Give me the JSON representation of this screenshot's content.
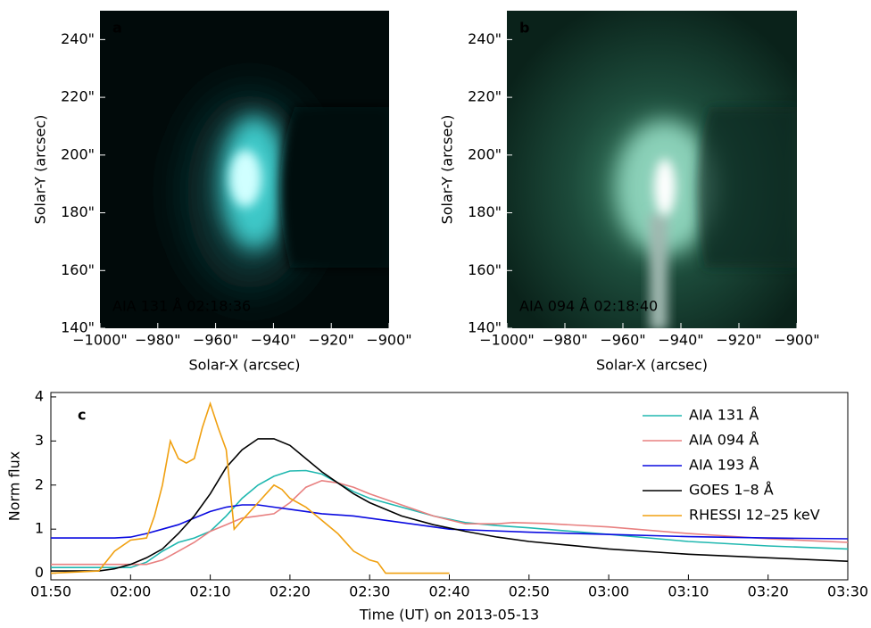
{
  "chart_data": [
    {
      "type": "image",
      "panel": "a",
      "annotation": "AIA 131 Å 02:18:36",
      "xlabel": "Solar-X (arcsec)",
      "ylabel": "Solar-Y (arcsec)",
      "xlim": [
        -1000,
        -900
      ],
      "ylim": [
        140,
        250
      ],
      "xticks": [
        {
          "value": -1000,
          "label": "−1000\""
        },
        {
          "value": -980,
          "label": "−980\""
        },
        {
          "value": -960,
          "label": "−960\""
        },
        {
          "value": -940,
          "label": "−940\""
        },
        {
          "value": -920,
          "label": "−920\""
        },
        {
          "value": -900,
          "label": "−900\""
        }
      ],
      "yticks": [
        {
          "value": 140,
          "label": "140\""
        },
        {
          "value": 160,
          "label": "160\""
        },
        {
          "value": 180,
          "label": "180\""
        },
        {
          "value": 200,
          "label": "200\""
        },
        {
          "value": 220,
          "label": "220\""
        },
        {
          "value": 240,
          "label": "240\""
        }
      ]
    },
    {
      "type": "image",
      "panel": "b",
      "annotation": "AIA 094 Å 02:18:40",
      "xlabel": "Solar-X (arcsec)",
      "ylabel": "Solar-Y (arcsec)",
      "xlim": [
        -1000,
        -900
      ],
      "ylim": [
        140,
        250
      ],
      "xticks": [
        {
          "value": -1000,
          "label": "−1000\""
        },
        {
          "value": -980,
          "label": "−980\""
        },
        {
          "value": -960,
          "label": "−960\""
        },
        {
          "value": -940,
          "label": "−940\""
        },
        {
          "value": -920,
          "label": "−920\""
        },
        {
          "value": -900,
          "label": "−900\""
        }
      ],
      "yticks": [
        {
          "value": 140,
          "label": "140\""
        },
        {
          "value": 160,
          "label": "160\""
        },
        {
          "value": 180,
          "label": "180\""
        },
        {
          "value": 200,
          "label": "200\""
        },
        {
          "value": 220,
          "label": "220\""
        },
        {
          "value": 240,
          "label": "240\""
        }
      ]
    },
    {
      "type": "line",
      "panel": "c",
      "xlabel": "Time (UT) on 2013-05-13",
      "ylabel": "Norm flux",
      "xlim": [
        "01:50",
        "03:30"
      ],
      "ylim": [
        -0.15,
        4.1
      ],
      "xticks": [
        "01:50",
        "02:00",
        "02:10",
        "02:20",
        "02:30",
        "02:40",
        "02:50",
        "03:00",
        "03:10",
        "03:20",
        "03:30"
      ],
      "yticks": [
        0,
        1,
        2,
        3,
        4
      ],
      "legend": "upper right",
      "series": [
        {
          "name": "AIA 131 Å",
          "color": "#20b8b0",
          "x": [
            "01:50",
            "02:00",
            "02:02",
            "02:04",
            "02:06",
            "02:08",
            "02:10",
            "02:12",
            "02:14",
            "02:16",
            "02:18",
            "02:20",
            "02:22",
            "02:24",
            "02:26",
            "02:28",
            "02:30",
            "02:34",
            "02:38",
            "02:42",
            "02:46",
            "02:50",
            "03:00",
            "03:10",
            "03:20",
            "03:30"
          ],
          "values": [
            0.13,
            0.13,
            0.25,
            0.5,
            0.7,
            0.8,
            0.95,
            1.3,
            1.7,
            2.0,
            2.2,
            2.32,
            2.33,
            2.25,
            2.05,
            1.85,
            1.7,
            1.5,
            1.3,
            1.15,
            1.08,
            1.03,
            0.88,
            0.72,
            0.62,
            0.55
          ]
        },
        {
          "name": "AIA 094 Å",
          "color": "#e88080",
          "x": [
            "01:50",
            "02:02",
            "02:04",
            "02:06",
            "02:08",
            "02:10",
            "02:12",
            "02:14",
            "02:16",
            "02:18",
            "02:20",
            "02:22",
            "02:24",
            "02:26",
            "02:28",
            "02:30",
            "02:34",
            "02:38",
            "02:42",
            "02:46",
            "02:48",
            "02:52",
            "03:00",
            "03:10",
            "03:20",
            "03:30"
          ],
          "values": [
            0.2,
            0.2,
            0.3,
            0.5,
            0.7,
            0.95,
            1.1,
            1.25,
            1.3,
            1.35,
            1.6,
            1.95,
            2.1,
            2.05,
            1.95,
            1.8,
            1.55,
            1.3,
            1.12,
            1.12,
            1.15,
            1.13,
            1.05,
            0.9,
            0.78,
            0.7
          ]
        },
        {
          "name": "AIA 193 Å",
          "color": "#0a0ae0",
          "x": [
            "01:50",
            "01:58",
            "02:00",
            "02:02",
            "02:04",
            "02:06",
            "02:08",
            "02:10",
            "02:12",
            "02:14",
            "02:16",
            "02:18",
            "02:20",
            "02:24",
            "02:28",
            "02:32",
            "02:36",
            "02:40",
            "02:50",
            "03:00",
            "03:10",
            "03:20",
            "03:30"
          ],
          "values": [
            0.8,
            0.8,
            0.82,
            0.9,
            1.0,
            1.1,
            1.25,
            1.4,
            1.5,
            1.55,
            1.55,
            1.5,
            1.45,
            1.35,
            1.3,
            1.2,
            1.1,
            1.0,
            0.93,
            0.88,
            0.83,
            0.8,
            0.78
          ]
        },
        {
          "name": "GOES 1–8 Å",
          "color": "#000000",
          "x": [
            "01:50",
            "01:56",
            "01:58",
            "02:00",
            "02:02",
            "02:04",
            "02:06",
            "02:08",
            "02:10",
            "02:12",
            "02:14",
            "02:16",
            "02:18",
            "02:20",
            "02:22",
            "02:24",
            "02:26",
            "02:28",
            "02:30",
            "02:34",
            "02:38",
            "02:42",
            "02:46",
            "02:50",
            "03:00",
            "03:10",
            "03:20",
            "03:30"
          ],
          "values": [
            0.05,
            0.05,
            0.1,
            0.2,
            0.35,
            0.55,
            0.9,
            1.3,
            1.8,
            2.4,
            2.8,
            3.05,
            3.05,
            2.9,
            2.6,
            2.3,
            2.05,
            1.8,
            1.6,
            1.3,
            1.1,
            0.95,
            0.82,
            0.72,
            0.55,
            0.43,
            0.35,
            0.27
          ]
        },
        {
          "name": "RHESSI 12–25 keV",
          "color": "#f0a010",
          "x": [
            "01:50",
            "01:56",
            "01:58",
            "02:00",
            "02:02",
            "02:03",
            "02:04",
            "02:05",
            "02:06",
            "02:07",
            "02:08",
            "02:09",
            "02:10",
            "02:11",
            "02:12",
            "02:13",
            "02:14",
            "02:16",
            "02:18",
            "02:19",
            "02:20",
            "02:22",
            "02:24",
            "02:26",
            "02:28",
            "02:30",
            "02:31",
            "02:32",
            "02:40"
          ],
          "values": [
            0.0,
            0.05,
            0.5,
            0.75,
            0.8,
            1.3,
            2.0,
            3.0,
            2.6,
            2.5,
            2.6,
            3.3,
            3.85,
            3.3,
            2.8,
            1.0,
            1.2,
            1.6,
            2.0,
            1.9,
            1.7,
            1.5,
            1.2,
            0.9,
            0.5,
            0.3,
            0.25,
            0.0,
            0.0
          ]
        }
      ]
    }
  ]
}
